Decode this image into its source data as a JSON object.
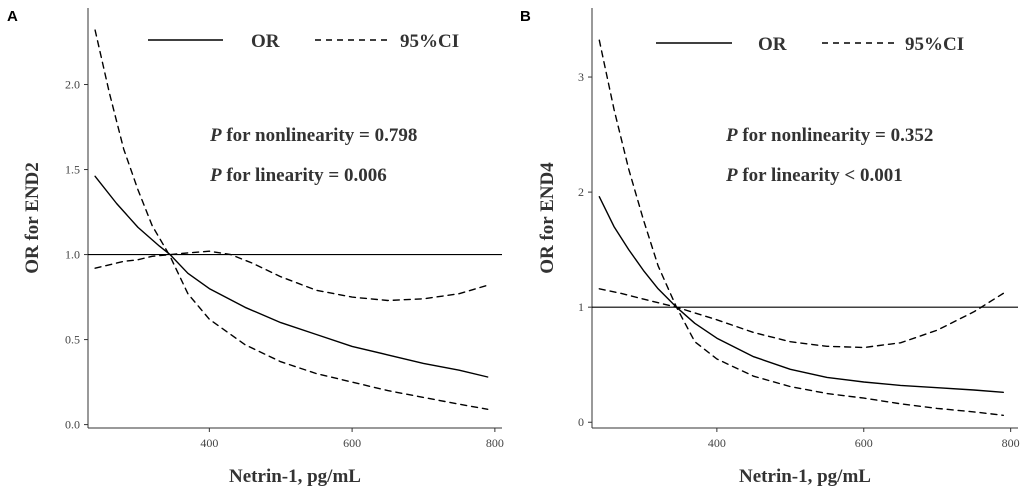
{
  "chart_data": [
    {
      "panel": "A",
      "type": "line",
      "title": "",
      "xlabel": "Netrin-1, pg/mL",
      "ylabel": "OR for END2",
      "xlim": [
        230,
        810
      ],
      "ylim": [
        -0.02,
        2.45
      ],
      "xticks": [
        400,
        600,
        800
      ],
      "xtick_labels": [
        "400",
        "600",
        "800"
      ],
      "yticks": [
        0.0,
        0.5,
        1.0,
        1.5,
        2.0
      ],
      "ytick_labels": [
        "0.0",
        "0.5",
        "1.0",
        "1.5",
        "2.0"
      ],
      "reference_line": 1.0,
      "legend": [
        {
          "label": "OR",
          "style": "solid"
        },
        {
          "label": "95%CI",
          "style": "dashed"
        }
      ],
      "annotations": [
        {
          "italic": "P",
          "text": " for nonlinearity = 0.798"
        },
        {
          "italic": "P",
          "text": " for linearity = 0.006"
        }
      ],
      "series": [
        {
          "name": "OR",
          "style": "solid",
          "x": [
            240,
            270,
            300,
            330,
            345,
            370,
            400,
            450,
            500,
            550,
            600,
            650,
            700,
            750,
            790
          ],
          "y": [
            1.46,
            1.3,
            1.16,
            1.05,
            1.0,
            0.89,
            0.8,
            0.69,
            0.6,
            0.53,
            0.46,
            0.41,
            0.36,
            0.32,
            0.28
          ]
        },
        {
          "name": "95%CI upper",
          "style": "dashed",
          "x": [
            240,
            260,
            280,
            300,
            320,
            345,
            370,
            400,
            430,
            460,
            500,
            550,
            600,
            650,
            700,
            750,
            790
          ],
          "y": [
            0.92,
            0.94,
            0.96,
            0.97,
            0.99,
            1.0,
            1.01,
            1.02,
            1.0,
            0.95,
            0.87,
            0.79,
            0.75,
            0.73,
            0.74,
            0.77,
            0.82
          ]
        },
        {
          "name": "95%CI lower",
          "style": "dashed",
          "x": [
            240,
            260,
            280,
            300,
            320,
            345,
            370,
            400,
            450,
            500,
            550,
            600,
            650,
            700,
            750,
            790
          ],
          "y": [
            2.32,
            1.95,
            1.62,
            1.38,
            1.17,
            0.99,
            0.77,
            0.62,
            0.47,
            0.37,
            0.3,
            0.25,
            0.2,
            0.16,
            0.12,
            0.09
          ]
        }
      ]
    },
    {
      "panel": "B",
      "type": "line",
      "title": "",
      "xlabel": "Netrin-1, pg/mL",
      "ylabel": "OR for END4",
      "xlim": [
        230,
        810
      ],
      "ylim": [
        -0.05,
        3.6
      ],
      "xticks": [
        400,
        600,
        800
      ],
      "xtick_labels": [
        "400",
        "600",
        "800"
      ],
      "yticks": [
        0,
        1,
        2,
        3
      ],
      "ytick_labels": [
        "0",
        "1",
        "2",
        "3"
      ],
      "reference_line": 1.0,
      "legend": [
        {
          "label": "OR",
          "style": "solid"
        },
        {
          "label": "95%CI",
          "style": "dashed"
        }
      ],
      "annotations": [
        {
          "italic": "P",
          "text": " for nonlinearity = 0.352"
        },
        {
          "italic": "P",
          "text": " for linearity < 0.001"
        }
      ],
      "series": [
        {
          "name": "OR",
          "style": "solid",
          "x": [
            240,
            260,
            280,
            300,
            320,
            345,
            370,
            400,
            450,
            500,
            550,
            600,
            650,
            700,
            750,
            790
          ],
          "y": [
            1.96,
            1.7,
            1.5,
            1.32,
            1.16,
            1.0,
            0.86,
            0.73,
            0.57,
            0.46,
            0.39,
            0.35,
            0.32,
            0.3,
            0.28,
            0.26
          ]
        },
        {
          "name": "95%CI upper",
          "style": "dashed",
          "x": [
            240,
            270,
            300,
            345,
            400,
            450,
            500,
            550,
            600,
            650,
            700,
            750,
            790
          ],
          "y": [
            1.16,
            1.12,
            1.07,
            1.0,
            0.89,
            0.78,
            0.7,
            0.66,
            0.65,
            0.69,
            0.8,
            0.96,
            1.12
          ]
        },
        {
          "name": "95%CI lower",
          "style": "dashed",
          "x": [
            240,
            260,
            280,
            300,
            320,
            345,
            370,
            400,
            450,
            500,
            550,
            600,
            650,
            700,
            750,
            790
          ],
          "y": [
            3.32,
            2.72,
            2.2,
            1.76,
            1.36,
            1.0,
            0.7,
            0.55,
            0.4,
            0.31,
            0.25,
            0.21,
            0.16,
            0.12,
            0.09,
            0.06
          ]
        }
      ]
    }
  ]
}
